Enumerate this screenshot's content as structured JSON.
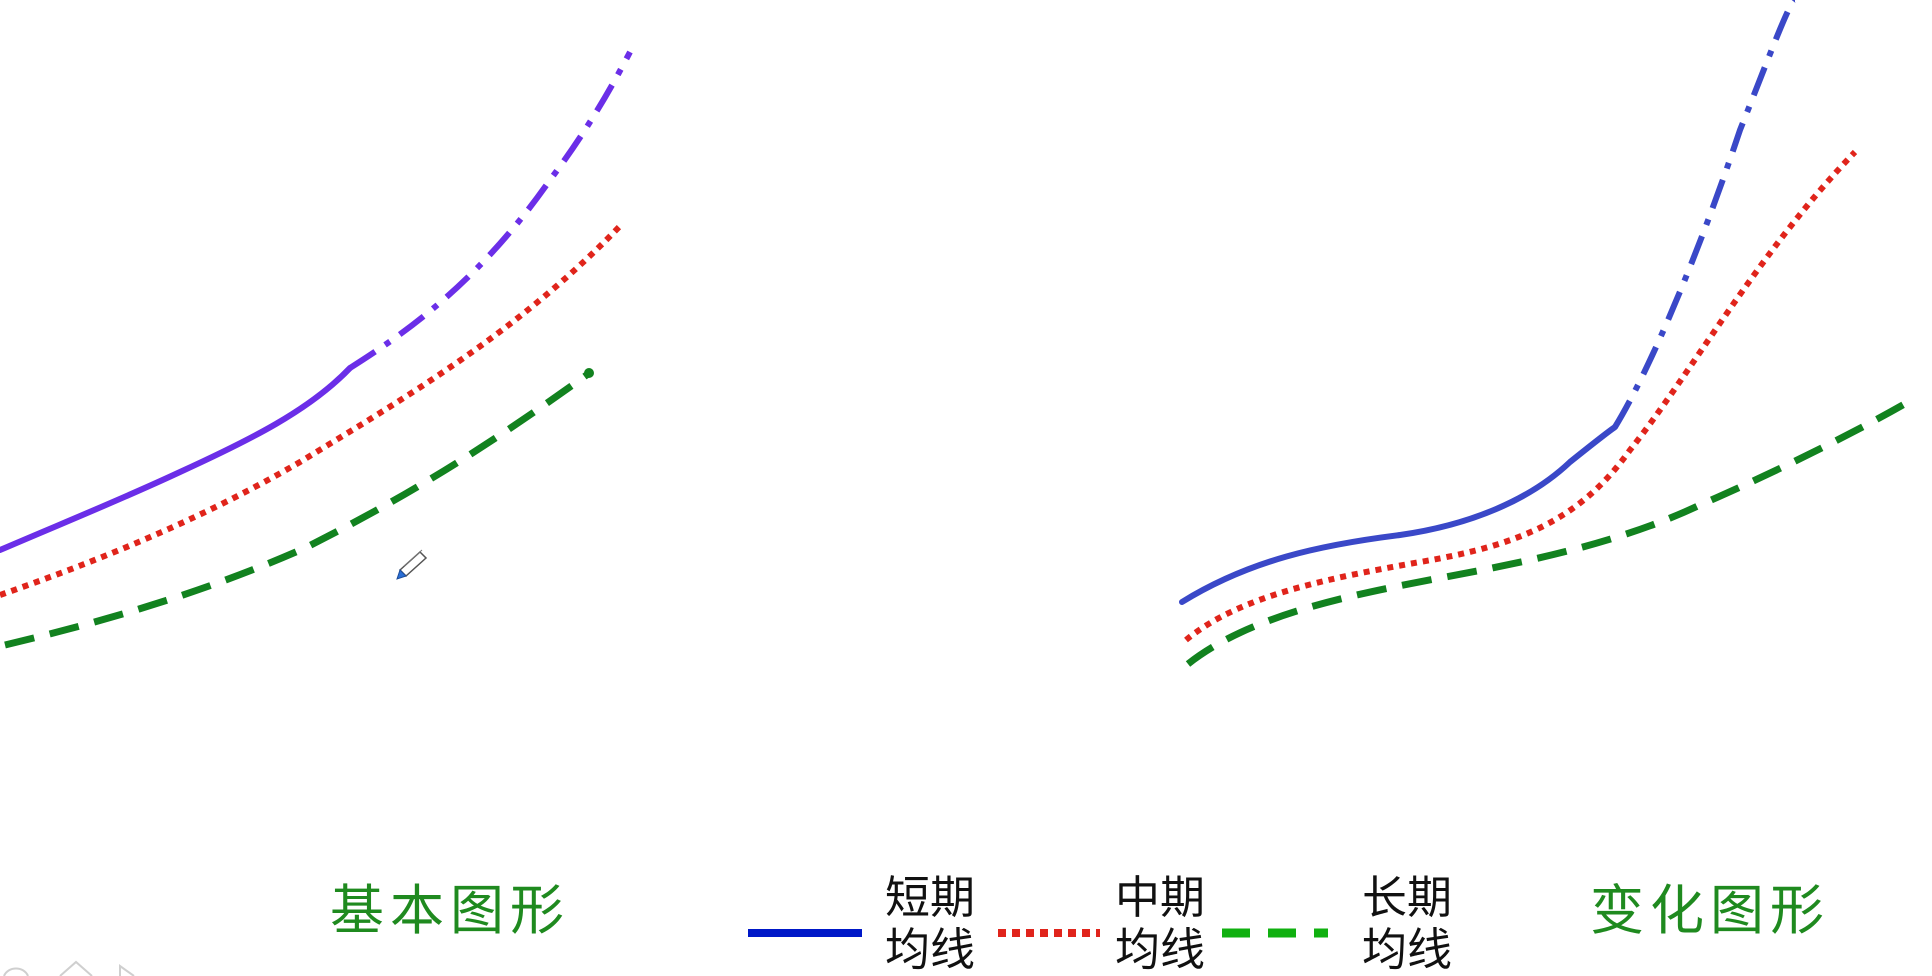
{
  "captions": {
    "basic": "基本图形",
    "variant": "变化图形"
  },
  "legend": [
    {
      "line1": "短期",
      "line2": "均线",
      "style": "solid",
      "color": "#0018c8"
    },
    {
      "line1": "中期",
      "line2": "均线",
      "style": "dotted",
      "color": "#e0241b"
    },
    {
      "line1": "长期",
      "line2": "均线",
      "style": "dashed",
      "color": "#10b010"
    }
  ],
  "colors": {
    "caption": "#1f8a1f",
    "basic_short": "#6b2ee8",
    "variant_short": "#3a48c8",
    "medium": "#e0241b",
    "long": "#12821f"
  },
  "icons": {
    "cursor": "pen-cursor-icon"
  }
}
